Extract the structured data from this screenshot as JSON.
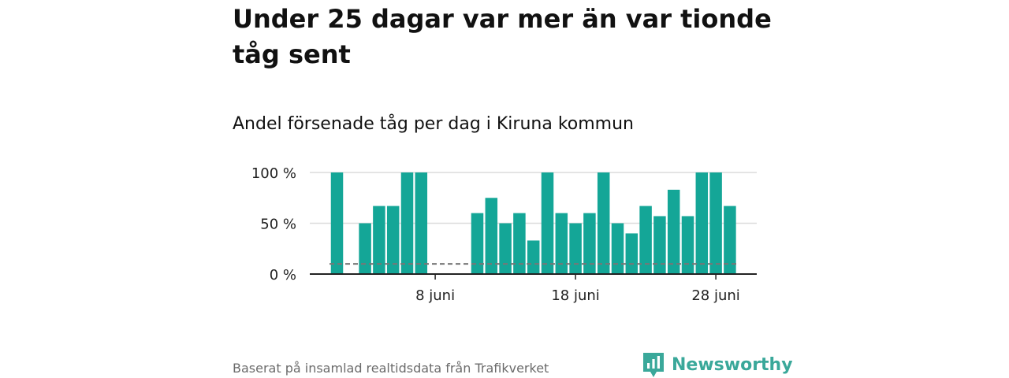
{
  "headline": "Under 25 dagar var mer än var tionde tåg sent",
  "chart_data": {
    "type": "bar",
    "title": "Andel försenade tåg per dag i Kiruna kommun",
    "x": [
      1,
      2,
      3,
      4,
      5,
      6,
      7,
      8,
      9,
      10,
      11,
      12,
      13,
      14,
      15,
      16,
      17,
      18,
      19,
      20,
      21,
      22,
      23,
      24,
      25,
      26,
      27,
      28,
      29,
      30
    ],
    "values": [
      100,
      null,
      50,
      67,
      67,
      100,
      100,
      null,
      null,
      null,
      60,
      75,
      50,
      60,
      33,
      100,
      60,
      50,
      60,
      100,
      50,
      40,
      67,
      57,
      83,
      57,
      100,
      100,
      67,
      null
    ],
    "x_ticks": [
      {
        "day": 8,
        "label": "8 juni"
      },
      {
        "day": 18,
        "label": "18 juni"
      },
      {
        "day": 28,
        "label": "28 juni"
      }
    ],
    "y_ticks": [
      {
        "value": 0,
        "label": "0 %"
      },
      {
        "value": 50,
        "label": "50 %"
      },
      {
        "value": 100,
        "label": "100 %"
      }
    ],
    "ylim": [
      0,
      100
    ],
    "reference_line": 10,
    "grid": true,
    "colors": {
      "bar": "#14a697",
      "reference": "#777777",
      "axis": "#222222",
      "grid": "#dcdcdc"
    }
  },
  "source": "Baserat på insamlad realtidsdata från Trafikverket",
  "brand": {
    "name": "Newsworthy",
    "color": "#3aa89a",
    "icon": "newsworthy-chart-bubble-icon"
  }
}
